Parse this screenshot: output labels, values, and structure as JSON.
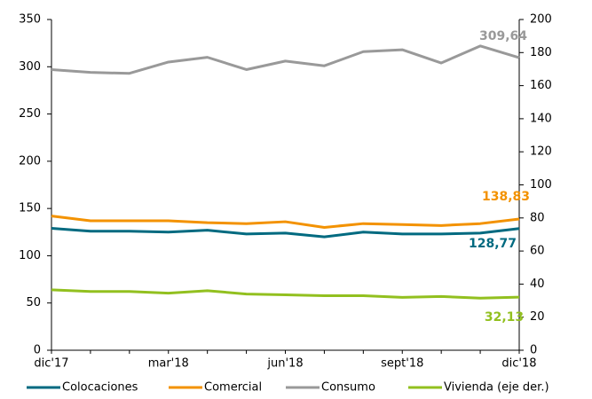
{
  "chart_data": {
    "type": "line",
    "categories": [
      "dic'17",
      null,
      null,
      "mar'18",
      null,
      null,
      "jun'18",
      null,
      null,
      "sept'18",
      null,
      null,
      "dic'18"
    ],
    "series": [
      {
        "name": "Colocaciones",
        "color": "#006a80",
        "values": [
          129,
          126,
          126,
          125,
          127,
          123,
          124,
          120,
          125,
          123,
          123,
          124,
          128.77
        ],
        "value_labels": [
          null,
          null,
          null,
          null,
          null,
          null,
          null,
          null,
          null,
          null,
          null,
          null,
          "128,77"
        ]
      },
      {
        "name": "Comercial",
        "color": "#f39200",
        "values": [
          142,
          137,
          137,
          137,
          135,
          134,
          136,
          130,
          134,
          133,
          132,
          134,
          138.83
        ],
        "value_labels": [
          null,
          null,
          null,
          null,
          null,
          null,
          null,
          null,
          null,
          null,
          null,
          null,
          "138,83"
        ]
      },
      {
        "name": "Consumo",
        "color": "#999999",
        "values": [
          297,
          294,
          293,
          305,
          310,
          297,
          306,
          301,
          316,
          318,
          304,
          322,
          309.64
        ],
        "value_labels": [
          null,
          null,
          null,
          null,
          null,
          null,
          null,
          null,
          null,
          null,
          null,
          null,
          "309,64"
        ]
      },
      {
        "name": "Vivienda (eje der.)",
        "color": "#92c01f",
        "axis": "y2",
        "values": [
          36.5,
          35.5,
          35.5,
          34.5,
          36,
          34,
          33.5,
          33,
          33,
          32,
          32.5,
          31.5,
          32.13
        ],
        "value_labels": [
          null,
          null,
          null,
          null,
          null,
          null,
          null,
          null,
          null,
          null,
          null,
          null,
          "32,13"
        ]
      }
    ],
    "ylim": [
      0,
      350
    ],
    "yticks": [
      0,
      50,
      100,
      150,
      200,
      250,
      300,
      350
    ],
    "y2lim": [
      0,
      200
    ],
    "y2ticks": [
      0,
      20,
      40,
      60,
      80,
      100,
      120,
      140,
      160,
      180,
      200
    ],
    "legend": "bottom",
    "grid": false
  }
}
